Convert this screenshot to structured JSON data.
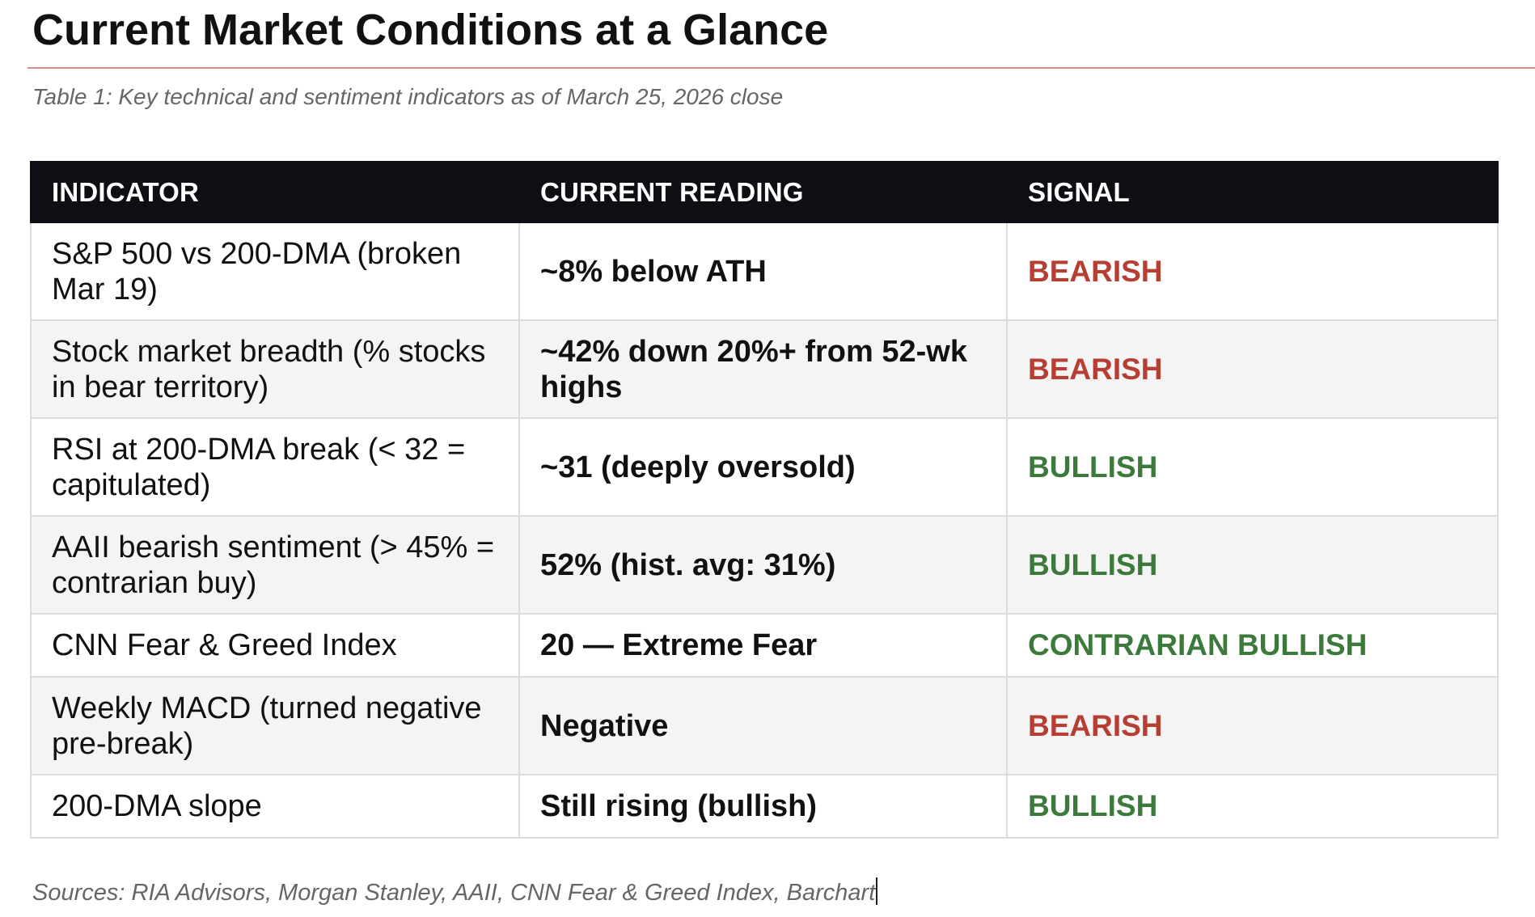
{
  "title": "Current Market Conditions at a Glance",
  "caption": "Table 1: Key technical and sentiment indicators as of March 25, 2026 close",
  "colors": {
    "bearish": "#b63e33",
    "bullish": "#3c7a3b",
    "header_bg": "#0d0f14",
    "rule": "#d98a86"
  },
  "table": {
    "headers": [
      "INDICATOR",
      "CURRENT READING",
      "SIGNAL"
    ],
    "rows": [
      {
        "indicator": "S&P 500 vs 200-DMA (broken Mar 19)",
        "reading": "~8% below ATH",
        "signal": "BEARISH",
        "tone": "bearish"
      },
      {
        "indicator": "Stock market breadth (% stocks in bear territory)",
        "reading": "~42% down 20%+ from 52-wk highs",
        "signal": "BEARISH",
        "tone": "bearish"
      },
      {
        "indicator": "RSI at 200-DMA break (< 32 = capitulated)",
        "reading": "~31 (deeply oversold)",
        "signal": "BULLISH",
        "tone": "bullish"
      },
      {
        "indicator": "AAII bearish sentiment (> 45% = contrarian buy)",
        "reading": "52% (hist. avg: 31%)",
        "signal": "BULLISH",
        "tone": "bullish"
      },
      {
        "indicator": "CNN Fear & Greed Index",
        "reading": "20 — Extreme Fear",
        "signal": "CONTRARIAN BULLISH",
        "tone": "bullish"
      },
      {
        "indicator": "Weekly MACD (turned negative pre-break)",
        "reading": "Negative",
        "signal": "BEARISH",
        "tone": "bearish"
      },
      {
        "indicator": "200-DMA slope",
        "reading": "Still rising (bullish)",
        "signal": "BULLISH",
        "tone": "bullish"
      }
    ]
  },
  "sources": "Sources: RIA Advisors, Morgan Stanley, AAII, CNN Fear & Greed Index, Barchart"
}
